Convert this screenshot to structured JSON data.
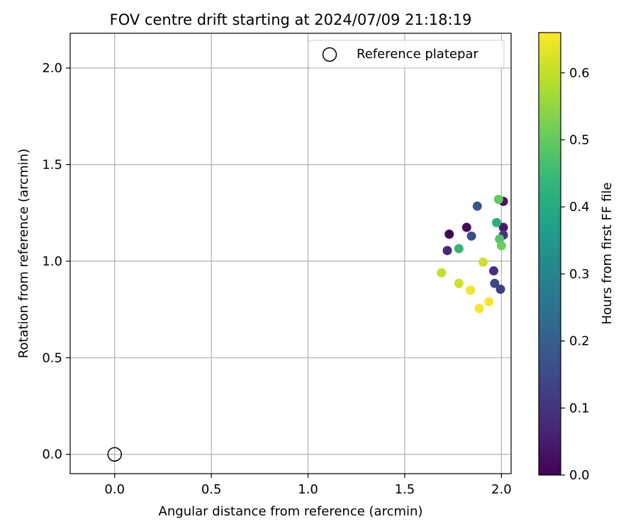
{
  "chart_data": {
    "type": "scatter",
    "title": "FOV centre drift starting at 2024/07/09 21:18:19",
    "xlabel": "Angular distance from reference (arcmin)",
    "ylabel": "Rotation from reference (arcmin)",
    "xlim": [
      -0.23,
      2.05
    ],
    "ylim": [
      -0.1,
      2.18
    ],
    "xticks": [
      "0.0",
      "0.5",
      "1.0",
      "1.5",
      "2.0"
    ],
    "yticks": [
      "0.0",
      "0.5",
      "1.0",
      "1.5",
      "2.0"
    ],
    "grid": true,
    "legend": {
      "position": "top-right",
      "entries": [
        "Reference platepar"
      ]
    },
    "reference": {
      "x": 0.0,
      "y": 0.0
    },
    "colorbar": {
      "label": "Hours from first FF file",
      "range": [
        0.0,
        0.66
      ],
      "ticks": [
        "0.0",
        "0.1",
        "0.2",
        "0.3",
        "0.4",
        "0.5",
        "0.6"
      ],
      "colormap": [
        "#440154",
        "#482878",
        "#3e4989",
        "#31688e",
        "#26828e",
        "#1f9e89",
        "#35b779",
        "#6ece58",
        "#b5de2b",
        "#fde725"
      ]
    },
    "series": [
      {
        "points": [
          {
            "x": 1.73,
            "y": 1.14,
            "h": 0.0
          },
          {
            "x": 1.82,
            "y": 1.175,
            "h": 0.02
          },
          {
            "x": 2.01,
            "y": 1.31,
            "h": 0.04
          },
          {
            "x": 2.01,
            "y": 1.175,
            "h": 0.05
          },
          {
            "x": 1.72,
            "y": 1.055,
            "h": 0.08
          },
          {
            "x": 1.96,
            "y": 0.95,
            "h": 0.09
          },
          {
            "x": 2.01,
            "y": 1.135,
            "h": 0.1
          },
          {
            "x": 1.995,
            "y": 0.855,
            "h": 0.12
          },
          {
            "x": 1.965,
            "y": 0.885,
            "h": 0.14
          },
          {
            "x": 1.845,
            "y": 1.13,
            "h": 0.16
          },
          {
            "x": 1.875,
            "y": 1.285,
            "h": 0.18
          },
          {
            "x": 1.975,
            "y": 1.2,
            "h": 0.41
          },
          {
            "x": 1.78,
            "y": 1.065,
            "h": 0.43
          },
          {
            "x": 1.99,
            "y": 1.115,
            "h": 0.48
          },
          {
            "x": 1.985,
            "y": 1.32,
            "h": 0.5
          },
          {
            "x": 2.0,
            "y": 1.08,
            "h": 0.51
          },
          {
            "x": 1.69,
            "y": 0.94,
            "h": 0.6
          },
          {
            "x": 1.78,
            "y": 0.885,
            "h": 0.61
          },
          {
            "x": 1.905,
            "y": 0.995,
            "h": 0.61
          },
          {
            "x": 1.84,
            "y": 0.85,
            "h": 0.65
          },
          {
            "x": 1.885,
            "y": 0.755,
            "h": 0.655
          },
          {
            "x": 1.935,
            "y": 0.79,
            "h": 0.66
          }
        ]
      }
    ]
  }
}
